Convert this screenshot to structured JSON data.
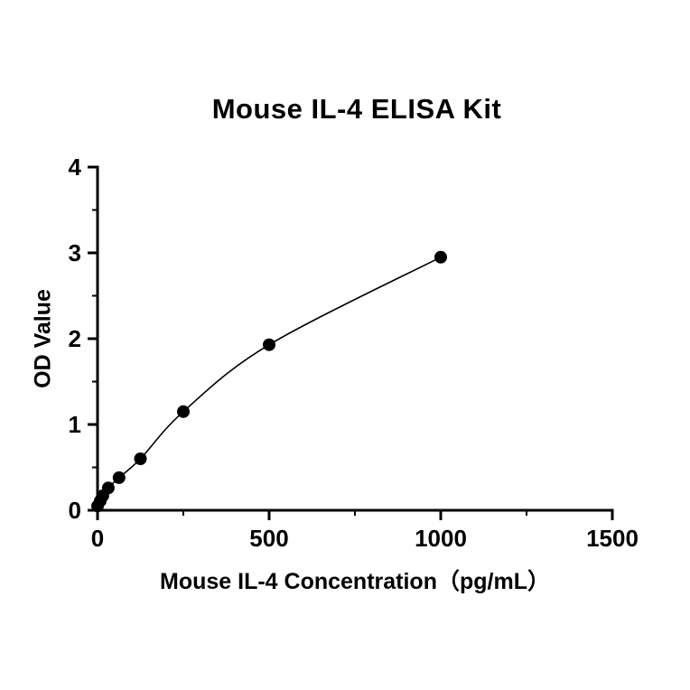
{
  "page": {
    "background_color": "#ffffff",
    "foreground_color": "#000000"
  },
  "chart_data": {
    "type": "scatter",
    "title": "Mouse IL-4 ELISA Kit",
    "xlabel": "Mouse IL-4 Concentration（pg/mL）",
    "ylabel": "OD Value",
    "x": [
      0,
      7.8,
      15.6,
      31.2,
      62.5,
      125,
      250,
      500,
      1000
    ],
    "y": [
      0.05,
      0.11,
      0.17,
      0.26,
      0.38,
      0.6,
      1.15,
      1.93,
      2.95
    ],
    "xlim": [
      0,
      1500
    ],
    "ylim": [
      0,
      4
    ],
    "x_major_ticks": [
      0,
      500,
      1000,
      1500
    ],
    "x_minor_ticks": [
      250,
      750,
      1250
    ],
    "y_major_ticks": [
      0,
      1,
      2,
      3,
      4
    ],
    "y_minor_ticks": [
      0.5,
      1.5,
      2.5,
      3.5
    ],
    "grid": false,
    "legend": "none",
    "curve_style": "smooth",
    "marker": {
      "shape": "circle",
      "color": "#000000",
      "radius": 7
    },
    "line_color": "#000000",
    "axis_color": "#000000",
    "tick_label_color": "#000000"
  }
}
